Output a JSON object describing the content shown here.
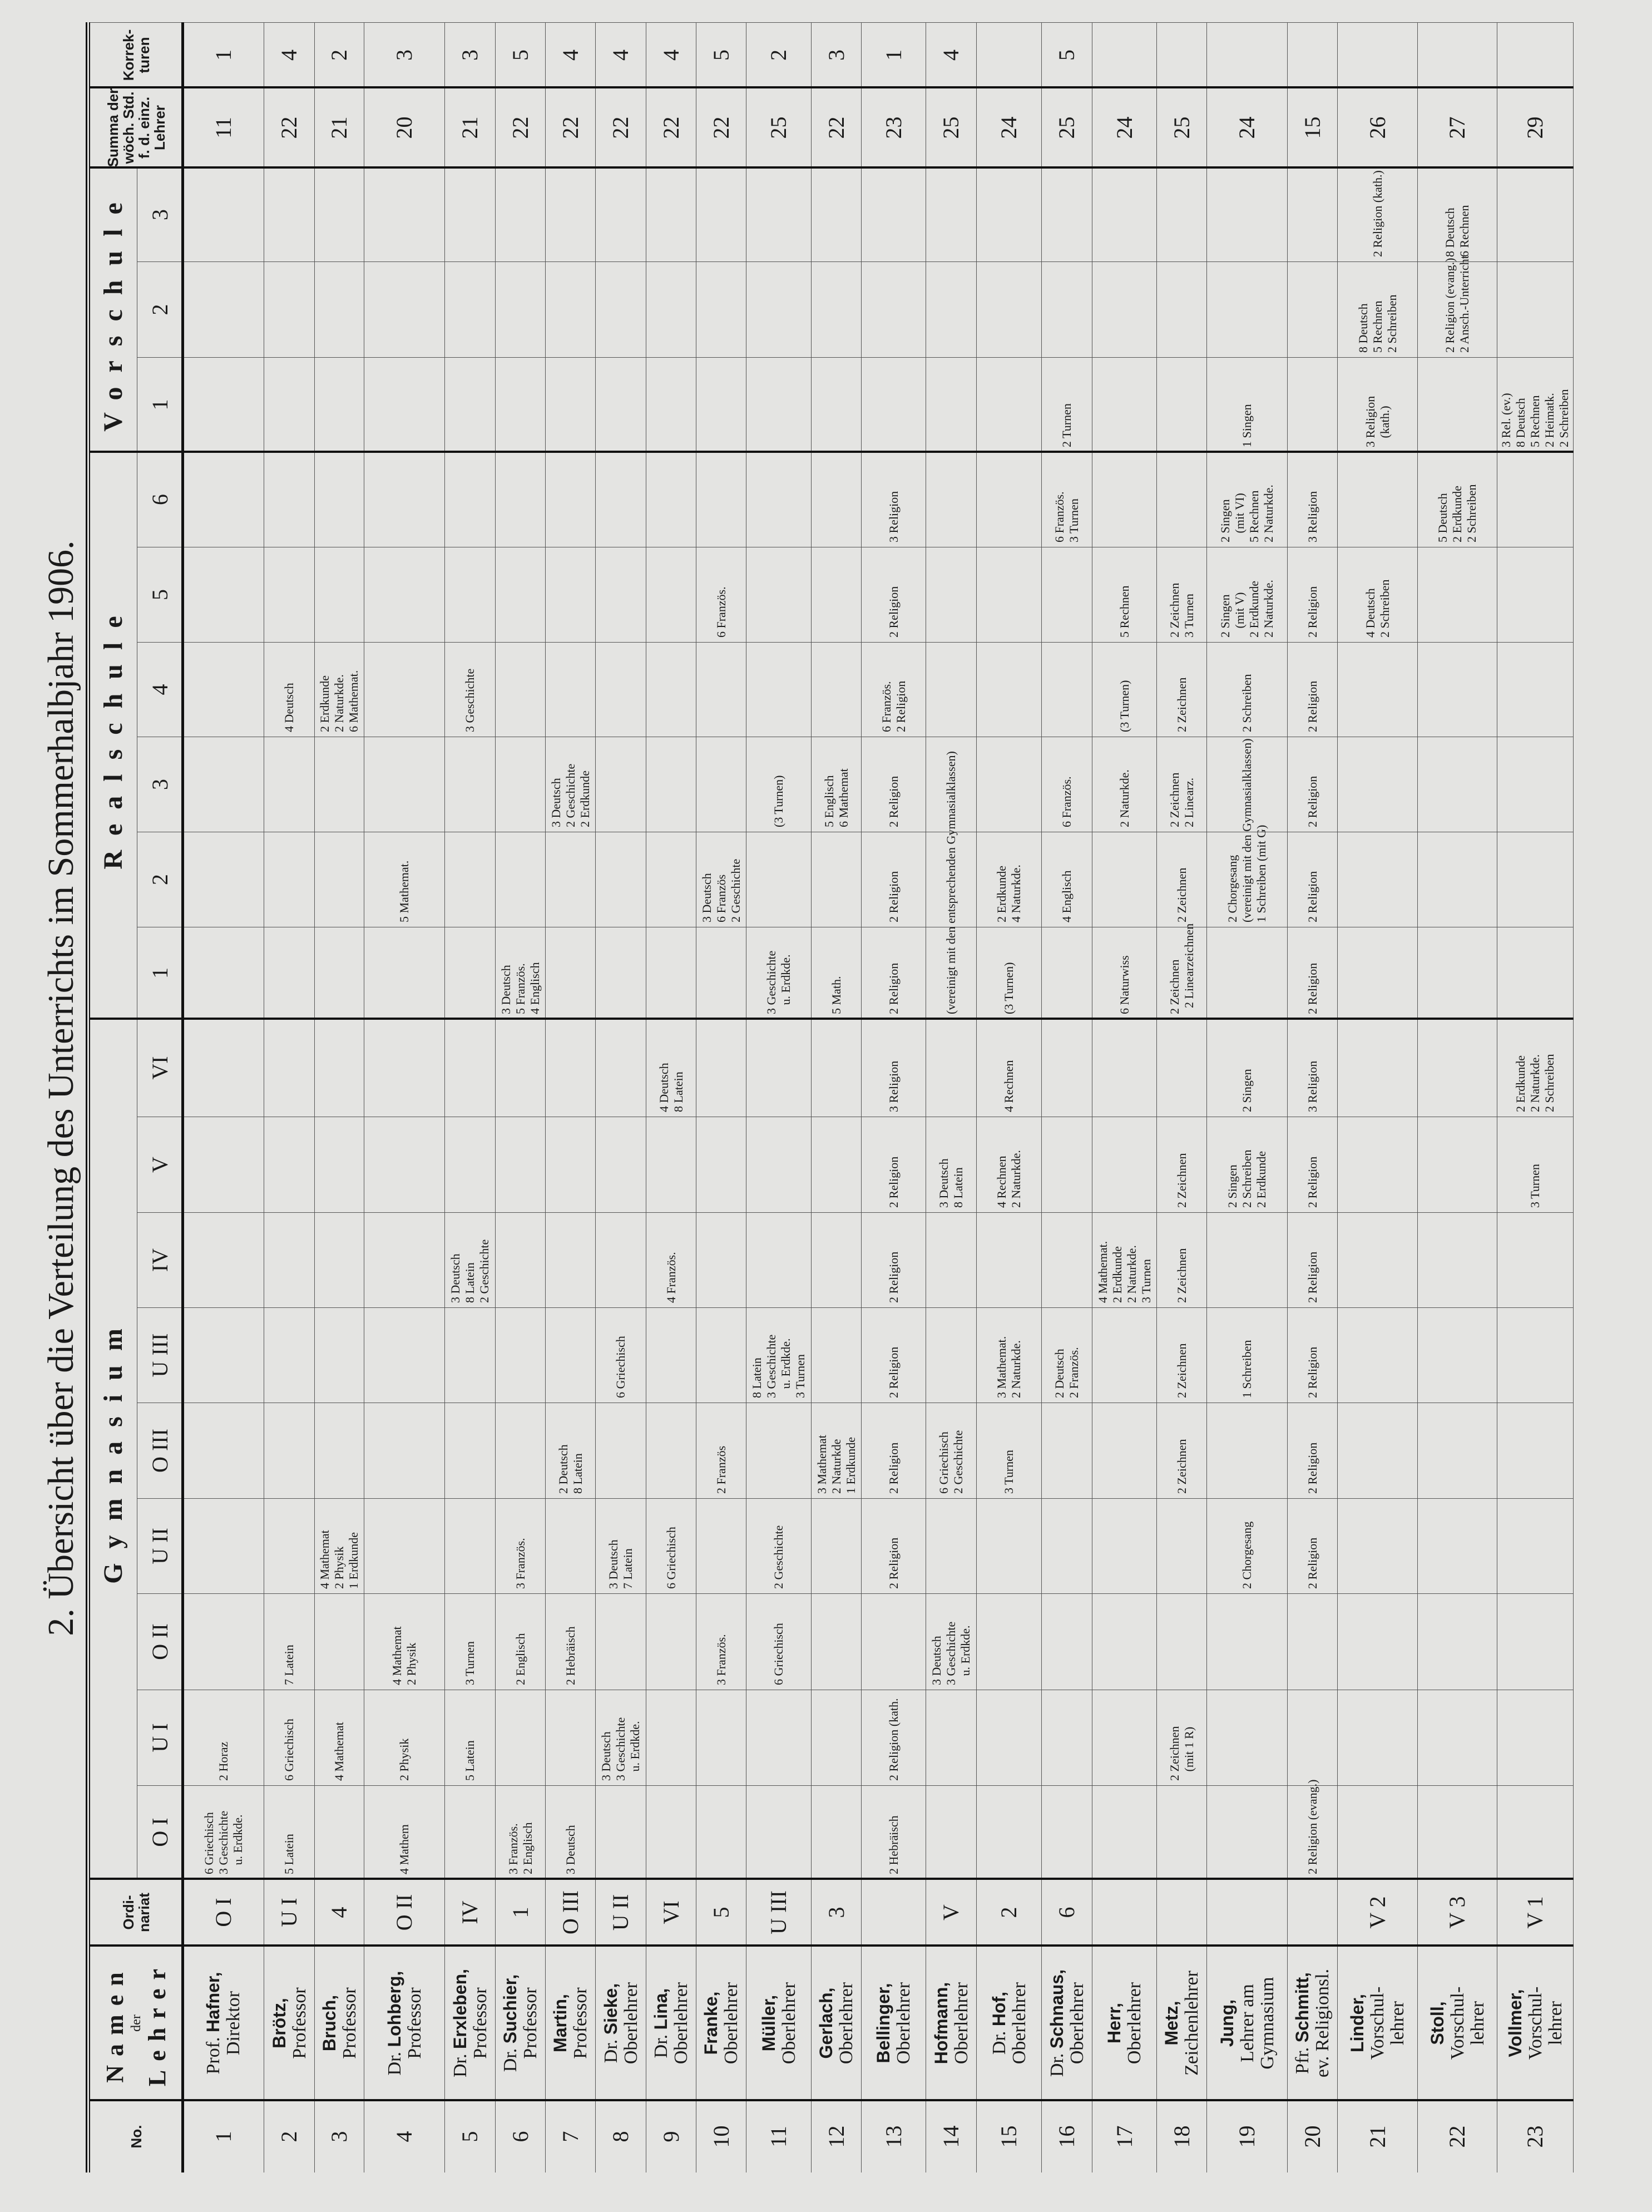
{
  "title": "2. Übersicht über die Verteilung des Unterrichts im Sommerhalbjahr 1906.",
  "header": {
    "no": "No.",
    "name_top": "Namen",
    "name_mid": "der",
    "name_bottom": "Lehrer",
    "ordinariat": "Ordi-\nnariat",
    "gymnasium": "Gymnasium",
    "realschule": "Realschule",
    "vorschule": "Vorschule",
    "summa": "Summa der\nwöch. Std.\nf. d. einz.\nLehrer",
    "korrekturen": "Korrek-\nturen",
    "classes": {
      "OI": "O I",
      "UI": "U I",
      "OII": "O II",
      "UII": "U II",
      "OIII": "O III",
      "UIII": "U III",
      "IV": "IV",
      "V": "V",
      "VI": "VI",
      "R1": "1",
      "R2": "2",
      "R3": "3",
      "R4": "4",
      "R5": "5",
      "R6": "6",
      "V1": "1",
      "V2": "2",
      "V3": "3"
    }
  },
  "rows": [
    {
      "no": "1",
      "pre": "Prof. ",
      "sur": "Hafner,",
      "role": "Direktor",
      "ord": "O I",
      "summa": "11",
      "korr": "1",
      "cells": {
        "OI": "6 Griechisch\n3 Geschichte\n   u. Erdkde.",
        "UI": "2 Horaz"
      }
    },
    {
      "no": "2",
      "pre": "",
      "sur": "Brötz,",
      "role": "Professor",
      "ord": "U I",
      "summa": "22",
      "korr": "4",
      "cells": {
        "OI": "5 Latein",
        "UI": "6 Griechisch",
        "OII": "7 Latein",
        "R4": "4 Deutsch"
      }
    },
    {
      "no": "3",
      "pre": "",
      "sur": "Bruch,",
      "role": "Professor",
      "ord": "4",
      "summa": "21",
      "korr": "2",
      "cells": {
        "UI": "4 Mathemat",
        "UII": "4 Mathemat\n2 Physik\n1 Erdkunde",
        "R4": "2 Erdkunde\n2 Naturkde.\n6 Mathemat."
      }
    },
    {
      "no": "4",
      "pre": "Dr. ",
      "sur": "Lohberg,",
      "role": "Professor",
      "ord": "O II",
      "summa": "20",
      "korr": "3",
      "cells": {
        "OI": "4 Mathem",
        "UI": "2 Physik",
        "OII": "4 Mathemat\n2 Physik",
        "R2": "5 Mathemat."
      }
    },
    {
      "no": "5",
      "pre": "Dr. ",
      "sur": "Erxleben,",
      "role": "Professor",
      "ord": "IV",
      "summa": "21",
      "korr": "3",
      "cells": {
        "UI": "5 Latein",
        "OII": "3 Turnen",
        "IV": "3 Deutsch\n8 Latein\n2 Geschichte",
        "R4": "3 Geschichte"
      }
    },
    {
      "no": "6",
      "pre": "Dr. ",
      "sur": "Suchier,",
      "role": "Professor",
      "ord": "1",
      "summa": "22",
      "korr": "5",
      "cells": {
        "OI": "3 Französ.\n2 Englisch",
        "OII": "2 Englisch",
        "UII": "3 Französ.",
        "R1": "3 Deutsch\n5 Französ.\n4 Englisch"
      }
    },
    {
      "no": "7",
      "pre": "",
      "sur": "Martin,",
      "role": "Professor",
      "ord": "O III",
      "summa": "22",
      "korr": "4",
      "cells": {
        "OI": "3 Deutsch",
        "OII": "2 Hebräisch",
        "OIII": "2 Deutsch\n8 Latein",
        "R3": "3 Deutsch\n2 Geschichte\n2 Erdkunde"
      }
    },
    {
      "no": "8",
      "pre": "Dr. ",
      "sur": "Sieke,",
      "role": "Oberlehrer",
      "ord": "U II",
      "summa": "22",
      "korr": "4",
      "cells": {
        "UI": "3 Deutsch\n3 Geschichte\n   u. Erdkde.",
        "UII": "3 Deutsch\n7 Latein",
        "UIII": "6 Griechisch"
      }
    },
    {
      "no": "9",
      "pre": "Dr. ",
      "sur": "Lina,",
      "role": "Oberlehrer",
      "ord": "VI",
      "summa": "22",
      "korr": "4",
      "cells": {
        "UII": "6 Griechisch",
        "IV": "4 Französ.",
        "VI": "4 Deutsch\n8 Latein"
      }
    },
    {
      "no": "10",
      "pre": "",
      "sur": "Franke,",
      "role": "Oberlehrer",
      "ord": "5",
      "summa": "22",
      "korr": "5",
      "cells": {
        "OII": "3 Französ.",
        "OIII": "2 Französ",
        "R2": "3 Deutsch\n6 Französ\n2 Geschichte",
        "R5": "6 Französ."
      }
    },
    {
      "no": "11",
      "pre": "",
      "sur": "Müller,",
      "role": "Oberlehrer",
      "ord": "U III",
      "summa": "25",
      "korr": "2",
      "cells": {
        "OII": "6 Griechisch",
        "UII": "2 Geschichte",
        "UIII": "8 Latein\n3 Geschichte\n   u. Erdkde.\n3 Turnen",
        "R1": "3 Geschichte\n   u. Erdkde.",
        "R3": "(3 Turnen)"
      }
    },
    {
      "no": "12",
      "pre": "",
      "sur": "Gerlach,",
      "role": "Oberlehrer",
      "ord": "3",
      "summa": "22",
      "korr": "3",
      "cells": {
        "OIII": "3 Mathemat\n2 Naturkde\n1 Erdkunde",
        "R1": "5 Math.",
        "R3": "5 Englisch\n6 Mathemat"
      }
    },
    {
      "no": "13",
      "pre": "",
      "sur": "Bellinger,",
      "role": "Oberlehrer",
      "ord": "",
      "summa": "23",
      "korr": "1",
      "cells": {
        "OI": "2 Hebräisch",
        "UI": "2 Religion (kath.",
        "UII": "2 Religion",
        "OIII": "2 Religion",
        "UIII": "2 Religion",
        "IV": "2 Religion",
        "V": "2 Religion",
        "VI": "3 Religion",
        "R1": "2 Religion",
        "R2": "2 Religion",
        "R3": "2 Religion",
        "R4": "6 Französ.\n2 Religion",
        "R5": "2 Religion",
        "R6": "3 Religion"
      }
    },
    {
      "no": "14",
      "pre": "",
      "sur": "Hofmann,",
      "role": "Oberlehrer",
      "ord": "V",
      "summa": "25",
      "korr": "4",
      "cells": {
        "OII": "3 Deutsch\n3 Geschichte\n   u. Erdkde.",
        "OIII": "6 Griechisch\n2 Geschichte",
        "V": "3 Deutsch\n8 Latein",
        "R1": "(vereinigt mit den entsprechenden Gymnasialklassen)"
      }
    },
    {
      "no": "15",
      "pre": "Dr. ",
      "sur": "Hof,",
      "role": "Oberlehrer",
      "ord": "2",
      "summa": "24",
      "korr": "",
      "cells": {
        "OIII": "3 Turnen",
        "UIII": "3 Mathemat.\n2 Naturkde.",
        "V": "4 Rechnen\n2 Naturkde.",
        "VI": "4 Rechnen",
        "R1": "(3 Turnen)",
        "R2": "2 Erdkunde\n4 Naturkde."
      }
    },
    {
      "no": "16",
      "pre": "Dr. ",
      "sur": "Schnaus,",
      "role": "Oberlehrer",
      "ord": "6",
      "summa": "25",
      "korr": "5",
      "cells": {
        "UIII": "2 Deutsch\n2 Französ.",
        "R2": "4 Englisch",
        "R3": "6 Französ.",
        "R6": "6 Französ.\n3 Turnen",
        "V1": "2 Turnen"
      }
    },
    {
      "no": "17",
      "pre": "",
      "sur": "Herr,",
      "role": "Oberlehrer",
      "ord": "",
      "summa": "24",
      "korr": "",
      "cells": {
        "IV": "4 Mathemat.\n2 Erdkunde\n2 Naturkde.\n3 Turnen",
        "R1": "6 Naturwiss",
        "R3": "2 Naturkde.",
        "R4": "(3 Turnen)",
        "R5": "5 Rechnen"
      }
    },
    {
      "no": "18",
      "pre": "",
      "sur": "Metz,",
      "role": "Zeichenlehrer",
      "ord": "",
      "summa": "25",
      "korr": "",
      "cells": {
        "UI": "2 Zeichnen\n   (mit 1 R)",
        "OIII": "2 Zeichnen",
        "UIII": "2 Zeichnen",
        "IV": "2 Zeichnen",
        "V": "2 Zeichnen",
        "R1": "2 Zeichnen\n  2 Linearzeichnen",
        "R2": "2 Zeichnen",
        "R3": "2 Zeichnen\n2 Linearz.",
        "R4": "2 Zeichnen",
        "R5": "2 Zeichnen\n3 Turnen"
      }
    },
    {
      "no": "19",
      "pre": "",
      "sur": "Jung,",
      "role": "Lehrer am\nGymnasium",
      "ord": "",
      "summa": "24",
      "korr": "",
      "cells": {
        "UII": "2 Chorgesang",
        "UIII": "1 Schreiben",
        "V": "2 Singen\n2 Schreiben\n2 Erdkunde",
        "VI": "2 Singen",
        "R2": "2 Chorgesang\n(vereinigt mit den Gymnasialklassen)\n1 Schreiben (mit G)",
        "R4": "2 Schreiben",
        "R5": "2 Singen\n   (mit V)\n2 Erdkunde\n2 Naturkde.",
        "R6": "2 Singen\n   (mit VI)\n5 Rechnen\n2 Naturkde.",
        "V1": "1 Singen"
      }
    },
    {
      "no": "20",
      "pre": "Pfr. ",
      "sur": "Schmitt,",
      "role": "ev. Religionsl.",
      "ord": "",
      "summa": "15",
      "korr": "",
      "cells": {
        "OI": "2 Religion (evang.)",
        "UII": "2 Religion",
        "OIII": "2 Religion",
        "UIII": "2 Religion",
        "IV": "2 Religion",
        "V": "2 Religion",
        "VI": "3 Religion",
        "R1": "2 Religion",
        "R2": "2 Religion",
        "R3": "2 Religion",
        "R4": "2 Religion",
        "R5": "2 Religion",
        "R6": "3 Religion"
      }
    },
    {
      "no": "21",
      "pre": "",
      "sur": "Linder,",
      "role": "Vorschul-\nlehrer",
      "ord": "V 2",
      "summa": "26",
      "korr": "",
      "cells": {
        "R5": "4 Deutsch\n2 Schreiben",
        "V1": "3 Religion\n   (kath.)",
        "V2": "8 Deutsch\n5 Rechnen\n2 Schreiben",
        "V3": "2 Religion (kath.)"
      }
    },
    {
      "no": "22",
      "pre": "",
      "sur": "Stoll,",
      "role": "Vorschul-\nlehrer",
      "ord": "V 3",
      "summa": "27",
      "korr": "",
      "cells": {
        "R6": "5 Deutsch\n2 Erdkunde\n2 Schreiben",
        "V2": "2 Religion (evang.)\n2 Ansch.-Unterricht",
        "V3": "8 Deutsch\n6 Rechnen"
      }
    },
    {
      "no": "23",
      "pre": "",
      "sur": "Vollmer,",
      "role": "Vorschul-\nlehrer",
      "ord": "V 1",
      "summa": "29",
      "korr": "",
      "cells": {
        "VI": "2 Erdkunde\n2 Naturkde.\n2 Schreiben",
        "V": "3 Turnen",
        "V1": "3 Rel. (ev.)\n8 Deutsch\n5 Rechnen\n2 Heimatk.\n2 Schreiben"
      }
    }
  ]
}
